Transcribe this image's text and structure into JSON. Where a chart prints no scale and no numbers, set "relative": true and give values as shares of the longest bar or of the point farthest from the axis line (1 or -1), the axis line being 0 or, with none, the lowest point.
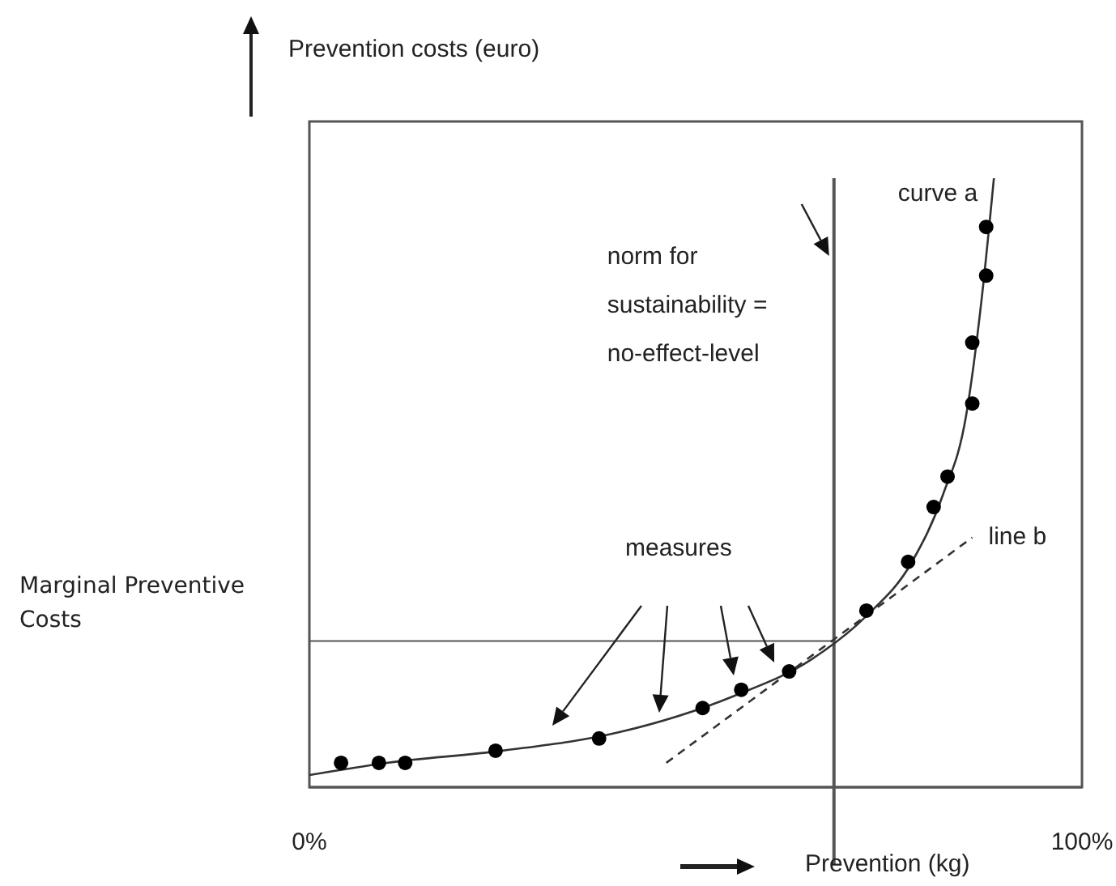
{
  "chart_data": {
    "type": "line",
    "xlabel": "Prevention (kg)",
    "ylabel": "Prevention costs (euro)",
    "relative": true,
    "xlim": [
      0,
      100
    ],
    "xticks": [
      {
        "value": 0,
        "label": "0%"
      },
      {
        "value": 100,
        "label": "100%"
      }
    ],
    "tick_labels": "x",
    "series": [
      {
        "name": "curve a",
        "color": "#333333",
        "marker": "none",
        "line_style": "solid",
        "x": [
          0,
          10,
          25,
          40,
          55,
          65,
          72,
          78,
          82,
          85,
          87,
          88.6
        ],
        "values": [
          0.02,
          0.04,
          0.06,
          0.09,
          0.15,
          0.21,
          0.28,
          0.37,
          0.48,
          0.61,
          0.8,
          1
        ]
      },
      {
        "type": "scatter",
        "color": "#000000",
        "marker": "circle",
        "x": [
          4.1,
          9,
          12.4,
          24.1,
          37.5,
          50.9,
          55.9,
          62.1,
          72.1,
          77.5,
          80.8,
          82.6,
          85.8,
          85.8,
          87.6,
          87.6
        ],
        "values": [
          0.04,
          0.04,
          0.04,
          0.06,
          0.08,
          0.13,
          0.16,
          0.19,
          0.29,
          0.37,
          0.46,
          0.51,
          0.63,
          0.73,
          0.84,
          0.92
        ]
      },
      {
        "type": "line",
        "name": "line b",
        "color": "#333333",
        "marker": "none",
        "line_style": "dashed",
        "x": [
          46.2,
          85.8
        ],
        "values": [
          0.04,
          0.41
        ]
      }
    ],
    "ref_lines": [
      {
        "axis": "x",
        "value": 67.9,
        "label": "norm for sustainability = no-effect-level",
        "color": "#555555",
        "line_style": "solid"
      },
      {
        "axis": "y",
        "value": 0.24,
        "label": "Marginal Preventive Costs",
        "color": "#555555",
        "line_style": "solid"
      }
    ],
    "annotations": [
      "measures"
    ]
  }
}
